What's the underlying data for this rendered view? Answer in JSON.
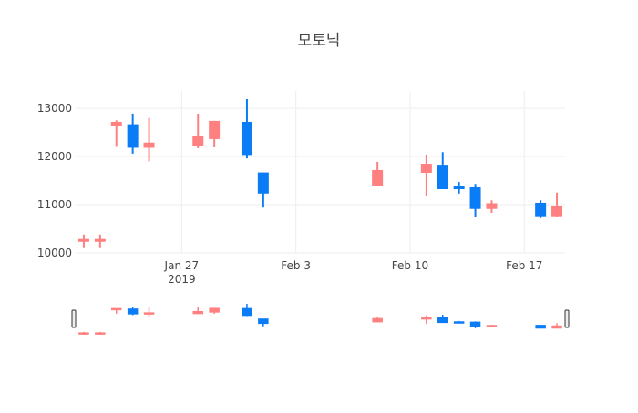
{
  "chart_data": {
    "type": "candlestick",
    "title": "모토닉",
    "x": [
      "2019-01-21",
      "2019-01-22",
      "2019-01-23",
      "2019-01-24",
      "2019-01-25",
      "2019-01-28",
      "2019-01-29",
      "2019-01-31",
      "2019-02-01",
      "2019-02-08",
      "2019-02-11",
      "2019-02-12",
      "2019-02-13",
      "2019-02-14",
      "2019-02-15",
      "2019-02-18",
      "2019-02-19"
    ],
    "open": [
      10250,
      10250,
      12650,
      12650,
      12200,
      12230,
      12380,
      12700,
      11650,
      11400,
      11680,
      11810,
      11370,
      11340,
      10930,
      11020,
      10780
    ],
    "high": [
      10380,
      10380,
      12750,
      12890,
      12800,
      12890,
      12740,
      13190,
      11660,
      11890,
      12040,
      12090,
      11470,
      11430,
      11090,
      11090,
      11250
    ],
    "low": [
      10100,
      10100,
      12200,
      12060,
      11900,
      12170,
      12190,
      11960,
      10940,
      11400,
      11170,
      11340,
      11230,
      10750,
      10830,
      10720,
      10750
    ],
    "close": [
      10270,
      10270,
      12700,
      12200,
      12270,
      12400,
      12720,
      12050,
      11250,
      11700,
      11830,
      11340,
      11340,
      10930,
      11010,
      10780,
      10960
    ],
    "increasing_color": "#ff8080",
    "decreasing_color": "#0a7cf5",
    "xlim": [
      "2019-01-20T12:00",
      "2019-02-19T12:00"
    ],
    "xticks": [
      {
        "value": "2019-01-27",
        "label": "Jan 27\n2019"
      },
      {
        "value": "2019-02-03",
        "label": "Feb 3"
      },
      {
        "value": "2019-02-10",
        "label": "Feb 10"
      },
      {
        "value": "2019-02-17",
        "label": "Feb 17"
      }
    ],
    "ylim": [
      10000,
      13360
    ],
    "yticks": [
      10000,
      11000,
      12000,
      13000
    ],
    "grid": true,
    "rangeslider": true
  }
}
